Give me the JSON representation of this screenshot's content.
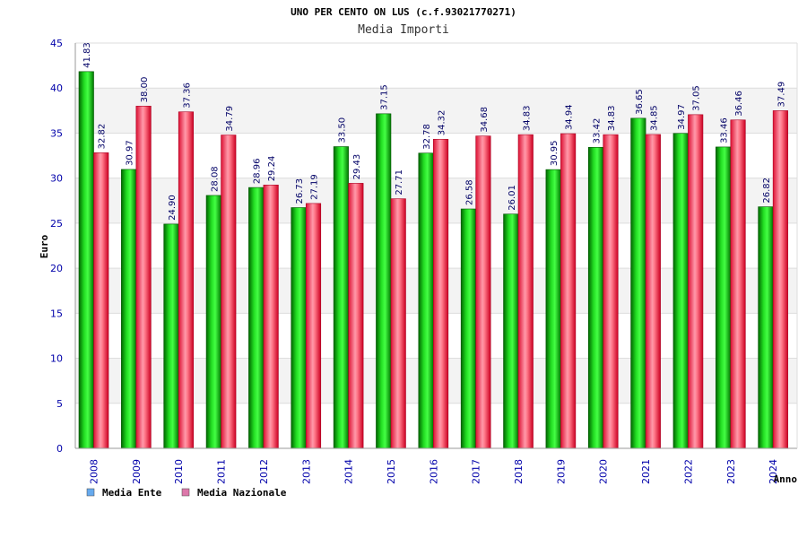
{
  "chart_data": {
    "type": "bar",
    "title": "UNO PER CENTO ON LUS (c.f.93021770271)",
    "subtitle": "Media Importi",
    "xlabel": "Anno",
    "ylabel": "Euro",
    "ylim": [
      0,
      45
    ],
    "yticks": [
      0,
      5,
      10,
      15,
      20,
      25,
      30,
      35,
      40,
      45
    ],
    "categories": [
      "2008",
      "2009",
      "2010",
      "2011",
      "2012",
      "2013",
      "2014",
      "2015",
      "2016",
      "2017",
      "2018",
      "2019",
      "2020",
      "2021",
      "2022",
      "2023",
      "2024"
    ],
    "series": [
      {
        "name": "Media Ente",
        "color": "#00aa00",
        "values": [
          41.83,
          30.97,
          24.9,
          28.08,
          28.96,
          26.73,
          33.5,
          37.15,
          32.78,
          26.58,
          26.01,
          30.95,
          33.42,
          36.65,
          34.97,
          33.46,
          26.82
        ],
        "labels": [
          "41.83",
          "30.97",
          "24.90",
          "28.08",
          "28.96",
          "26.73",
          "33.50",
          "37.15",
          "32.78",
          "26.58",
          "26.01",
          "30.95",
          "33.42",
          "36.65",
          "34.97",
          "33.46",
          "26.82"
        ]
      },
      {
        "name": "Media Nazionale",
        "color": "#dd1133",
        "values": [
          32.82,
          38.0,
          37.36,
          34.79,
          29.24,
          27.19,
          29.43,
          27.71,
          34.32,
          34.68,
          34.83,
          34.94,
          34.83,
          34.85,
          37.05,
          36.46,
          37.49
        ],
        "labels": [
          "32.82",
          "38.00",
          "37.36",
          "34.79",
          "29.24",
          "27.19",
          "29.43",
          "27.71",
          "34.32",
          "34.68",
          "34.83",
          "34.94",
          "34.83",
          "34.85",
          "37.05",
          "36.46",
          "37.49"
        ]
      }
    ],
    "legend": {
      "placement": "bottom-left",
      "swatch_colors": [
        "#66aaee",
        "#dd77aa"
      ]
    },
    "grid": true,
    "banded_background": true
  }
}
